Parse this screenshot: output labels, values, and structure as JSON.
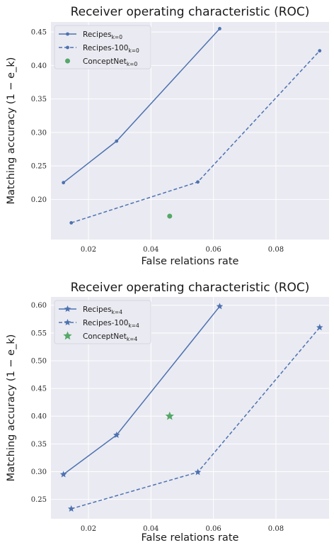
{
  "colors": {
    "series_blue": "#4c72b0",
    "concept_green": "#55a868",
    "axes_bg": "#eaeaf2",
    "grid": "#ffffff"
  },
  "chart_data": [
    {
      "type": "line",
      "title": "Receiver operating characteristic (ROC)",
      "xlabel": "False relations rate",
      "ylabel": "Matching accuracy (1 − e_k)",
      "xlim": [
        0.008,
        0.097
      ],
      "ylim": [
        0.14,
        0.465
      ],
      "xticks": [
        0.02,
        0.04,
        0.06,
        0.08
      ],
      "xtick_labels": [
        "0.02",
        "0.04",
        "0.06",
        "0.08"
      ],
      "yticks": [
        0.2,
        0.25,
        0.3,
        0.35,
        0.4,
        0.45
      ],
      "ytick_labels": [
        "0.20",
        "0.25",
        "0.30",
        "0.35",
        "0.40",
        "0.45"
      ],
      "grid": true,
      "legend_position": "top-left",
      "marker": "circle",
      "series": [
        {
          "name": "Recipes",
          "subscript": "k=0",
          "style": "solid",
          "x": [
            0.012,
            0.029,
            0.062
          ],
          "y": [
            0.225,
            0.287,
            0.455
          ]
        },
        {
          "name": "Recipes-100",
          "subscript": "k=0",
          "style": "dashed",
          "x": [
            0.0145,
            0.055,
            0.094
          ],
          "y": [
            0.165,
            0.226,
            0.422
          ]
        },
        {
          "name": "ConceptNet",
          "subscript": "k=0",
          "style": "point",
          "x": [
            0.046
          ],
          "y": [
            0.175
          ]
        }
      ]
    },
    {
      "type": "line",
      "title": "Receiver operating characteristic (ROC)",
      "xlabel": "False relations rate",
      "ylabel": "Matching accuracy (1 − e_k)",
      "xlim": [
        0.008,
        0.097
      ],
      "ylim": [
        0.215,
        0.615
      ],
      "xticks": [
        0.02,
        0.04,
        0.06,
        0.08
      ],
      "xtick_labels": [
        "0.02",
        "0.04",
        "0.06",
        "0.08"
      ],
      "yticks": [
        0.25,
        0.3,
        0.35,
        0.4,
        0.45,
        0.5,
        0.55,
        0.6
      ],
      "ytick_labels": [
        "0.25",
        "0.30",
        "0.35",
        "0.40",
        "0.45",
        "0.50",
        "0.55",
        "0.60"
      ],
      "grid": true,
      "legend_position": "top-left",
      "marker": "star",
      "series": [
        {
          "name": "Recipes",
          "subscript": "k=4",
          "style": "solid",
          "x": [
            0.012,
            0.029,
            0.062
          ],
          "y": [
            0.295,
            0.366,
            0.598
          ]
        },
        {
          "name": "Recipes-100",
          "subscript": "k=4",
          "style": "dashed",
          "x": [
            0.0145,
            0.055,
            0.094
          ],
          "y": [
            0.233,
            0.299,
            0.56
          ]
        },
        {
          "name": "ConceptNet",
          "subscript": "k=4",
          "style": "point",
          "x": [
            0.046
          ],
          "y": [
            0.4
          ]
        }
      ]
    }
  ]
}
